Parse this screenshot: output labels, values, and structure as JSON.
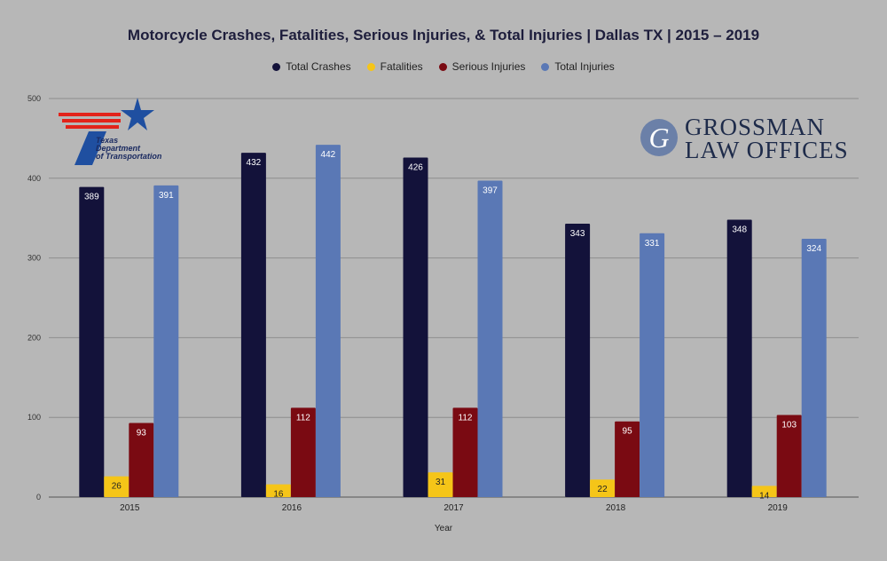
{
  "chart_data": {
    "type": "bar",
    "title": "Motorcycle Crashes, Fatalities, Serious Injuries, & Total Injuries | Dallas TX | 2015 – 2019",
    "xlabel": "Year",
    "ylabel": "",
    "categories": [
      "2015",
      "2016",
      "2017",
      "2018",
      "2019"
    ],
    "ylim": [
      0,
      500
    ],
    "yticks": [
      0,
      100,
      200,
      300,
      400,
      500
    ],
    "grid": true,
    "legend_position": "top",
    "series": [
      {
        "name": "Total Crashes",
        "color": "#13123a",
        "values": [
          389,
          432,
          426,
          343,
          348
        ]
      },
      {
        "name": "Fatalities",
        "color": "#f5c518",
        "values": [
          26,
          16,
          31,
          22,
          14
        ]
      },
      {
        "name": "Serious Injuries",
        "color": "#7a0a12",
        "values": [
          93,
          112,
          112,
          95,
          103
        ]
      },
      {
        "name": "Total Injuries",
        "color": "#5a78b5",
        "values": [
          391,
          442,
          397,
          331,
          324
        ]
      }
    ]
  },
  "logos": {
    "txdot": {
      "line1": "Texas",
      "line2": "Department",
      "line3": "of Transportation"
    },
    "grossman": {
      "initial": "G",
      "line1": "GROSSMAN",
      "line2": "LAW OFFICES"
    }
  }
}
